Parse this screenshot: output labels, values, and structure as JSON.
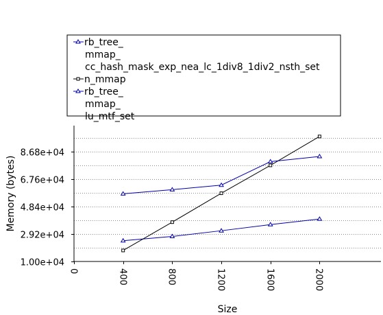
{
  "chart_data": {
    "type": "line",
    "xlabel": "Size",
    "ylabel": "Memory (bytes)",
    "x": [
      400,
      800,
      1200,
      1600,
      2000
    ],
    "x_ticks": [
      0,
      400,
      800,
      1200,
      1600,
      2000
    ],
    "x_tick_labels": [
      "0",
      "400",
      "800",
      "1200",
      "1600",
      "2000"
    ],
    "xlim": [
      0,
      2500
    ],
    "ylim": [
      10000,
      105000
    ],
    "y_ticks": [
      10000,
      29200,
      48400,
      67600,
      86800
    ],
    "y_tick_labels": [
      "1.00e+04",
      "2.92e+04",
      "4.84e+04",
      "6.76e+04",
      "8.68e+04"
    ],
    "grid": "horizontal dotted",
    "legend_position": "top",
    "series": [
      {
        "name_lines": [
          "rb_tree_",
          "mmap_",
          "cc_hash_mask_exp_nea_lc_1div8_1div2_nsth_set"
        ],
        "color": "#0000aa",
        "marker": "triangle",
        "values": [
          24500,
          27500,
          31500,
          35800,
          39700
        ]
      },
      {
        "name_lines": [
          "n_mmap"
        ],
        "color": "#000000",
        "marker": "square",
        "values": [
          17700,
          37500,
          57700,
          77200,
          97400
        ]
      },
      {
        "name_lines": [
          "rb_tree_",
          "mmap_",
          "lu_mtf_set"
        ],
        "color": "#0000aa",
        "marker": "triangle",
        "values": [
          57300,
          60200,
          63400,
          79800,
          83400
        ]
      }
    ]
  }
}
